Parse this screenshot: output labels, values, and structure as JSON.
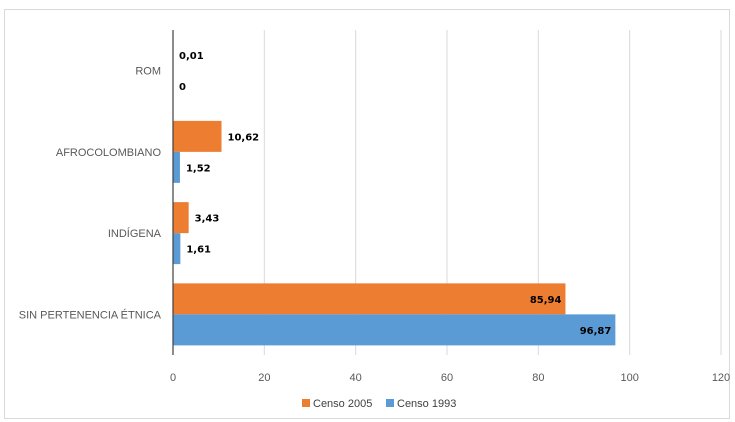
{
  "chart_data": {
    "type": "bar",
    "orientation": "horizontal",
    "categories": [
      "ROM",
      "AFROCOLOMBIANO",
      "INDÍGENA",
      "SIN PERTENENCIA ÉTNICA"
    ],
    "series": [
      {
        "name": "Censo 2005",
        "values": [
          0.01,
          10.62,
          3.43,
          85.94
        ],
        "labels": [
          "0,01",
          "10,62",
          "3,43",
          "85,94"
        ],
        "color": "#ed7d31"
      },
      {
        "name": "Censo 1993",
        "values": [
          0,
          1.52,
          1.61,
          96.87
        ],
        "labels": [
          "0",
          "1,52",
          "1,61",
          "96,87"
        ],
        "color": "#5b9bd5"
      }
    ],
    "xlim": [
      0,
      120
    ],
    "xticks": [
      0,
      20,
      40,
      60,
      80,
      100,
      120
    ],
    "xtick_labels": [
      "0",
      "20",
      "40",
      "60",
      "80",
      "100",
      "120"
    ],
    "grid": "vertical",
    "legend": "bottom-center",
    "title": "",
    "xlabel": "",
    "ylabel": ""
  }
}
